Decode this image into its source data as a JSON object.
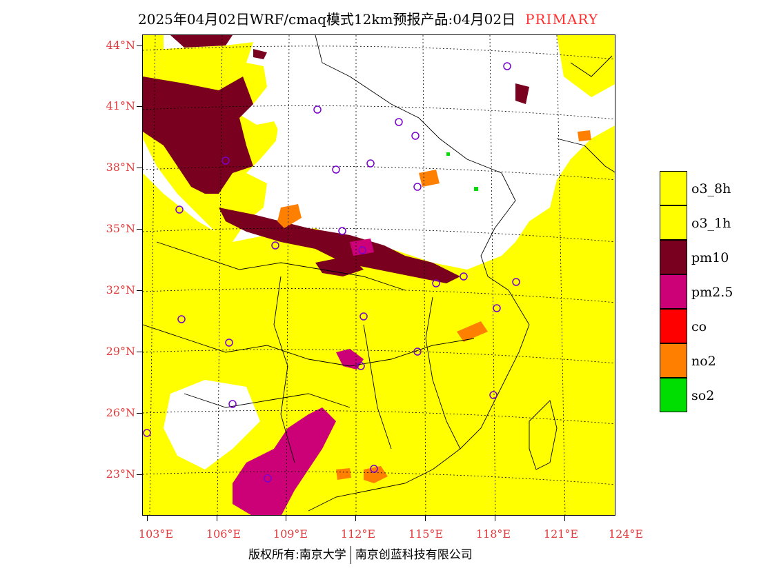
{
  "title": {
    "text": "2025年04月02日WRF/cmaq模式12km预报产品:04月02日",
    "flag": "PRIMARY"
  },
  "axes": {
    "lat_labels": [
      "44°N",
      "41°N",
      "38°N",
      "35°N",
      "32°N",
      "29°N",
      "26°N",
      "23°N"
    ],
    "lon_labels": [
      "103°E",
      "106°E",
      "109°E",
      "112°E",
      "115°E",
      "118°E",
      "121°E",
      "124°E"
    ]
  },
  "legend": {
    "items": [
      {
        "label": "o3_8h",
        "color": "#ffff00"
      },
      {
        "label": "o3_1h",
        "color": "#ffff00"
      },
      {
        "label": "pm10",
        "color": "#7a0020"
      },
      {
        "label": "pm2.5",
        "color": "#cc0077"
      },
      {
        "label": "co",
        "color": "#ff0000"
      },
      {
        "label": "no2",
        "color": "#ff7f00"
      },
      {
        "label": "so2",
        "color": "#00dd00"
      }
    ]
  },
  "footer": {
    "owner1": "版权所有:南京大学",
    "owner2": "南京创蓝科技有限公司"
  }
}
